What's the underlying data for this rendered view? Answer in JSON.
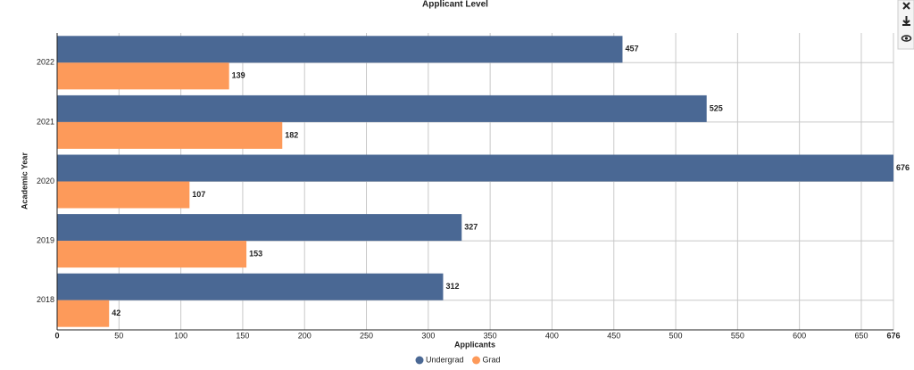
{
  "chart_data": {
    "type": "bar",
    "orientation": "horizontal",
    "title": "Applicant Level",
    "x_label": "Applicants",
    "y_label": "Academic Year",
    "categories": [
      "2022",
      "2021",
      "2020",
      "2019",
      "2018"
    ],
    "series": [
      {
        "name": "Undergrad",
        "color": "#4a6894",
        "values": [
          457,
          525,
          676,
          327,
          312
        ]
      },
      {
        "name": "Grad",
        "color": "#fd9a5a",
        "values": [
          139,
          182,
          107,
          153,
          42
        ]
      }
    ],
    "xlim": [
      0,
      676
    ],
    "xticks": [
      0,
      50,
      100,
      150,
      200,
      250,
      300,
      350,
      400,
      450,
      500,
      550,
      600,
      650,
      676
    ],
    "grid": true,
    "legend": "bottom"
  }
}
